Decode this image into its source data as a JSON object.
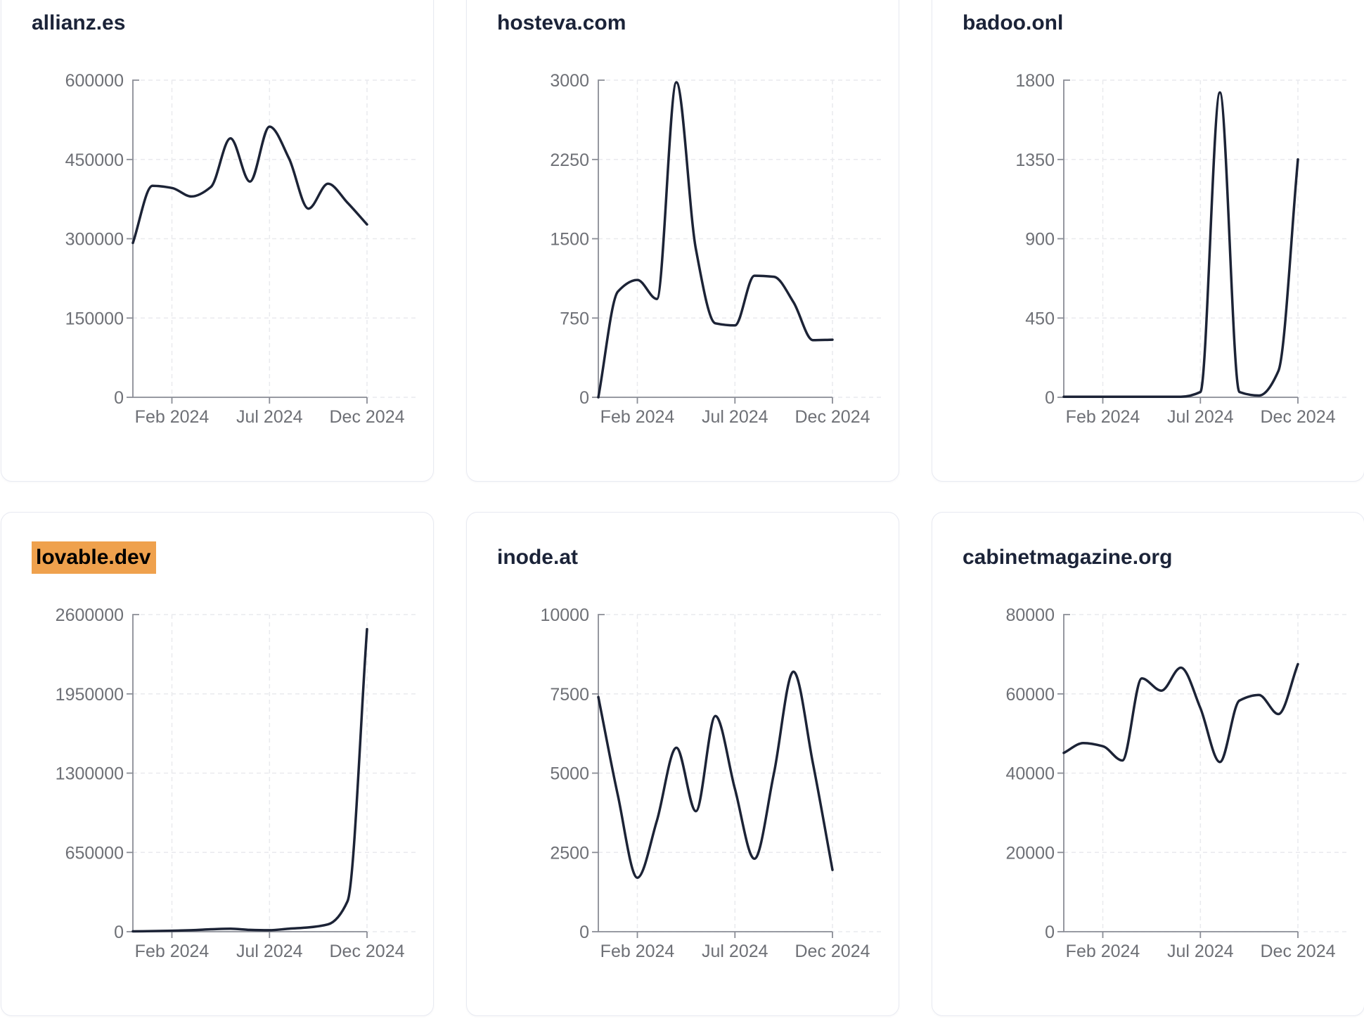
{
  "theme": {
    "background": "#ffffff",
    "card_background": "#ffffff",
    "card_border": "#e8eaf2",
    "title_color": "#1b2338",
    "highlight_background": "#efa14d",
    "highlight_text": "#000000",
    "line_color": "#1c2336",
    "axis_color": "#8a8d96",
    "axis_label_color": "#6e7076",
    "gridline_color": "#e9eaee"
  },
  "chart_data": [
    {
      "type": "line",
      "title": "allianz.es",
      "title_highlighted": false,
      "x": [
        "Dec 2023",
        "Jan 2024",
        "Feb 2024",
        "Mar 2024",
        "Apr 2024",
        "May 2024",
        "Jun 2024",
        "Jul 2024",
        "Aug 2024",
        "Sep 2024",
        "Oct 2024",
        "Nov 2024",
        "Dec 2024"
      ],
      "x_tick_labels": [
        "Feb 2024",
        "Jul 2024",
        "Dec 2024"
      ],
      "values": [
        292000,
        400000,
        396000,
        380000,
        398000,
        490000,
        408000,
        512000,
        452000,
        357000,
        404000,
        368000,
        327000
      ],
      "ylim": [
        0,
        600000
      ],
      "y_ticks": [
        0,
        150000,
        300000,
        450000,
        600000
      ],
      "grid": "dashed",
      "legend": "none"
    },
    {
      "type": "line",
      "title": "hosteva.com",
      "title_highlighted": false,
      "x": [
        "Dec 2023",
        "Jan 2024",
        "Feb 2024",
        "Mar 2024",
        "Apr 2024",
        "May 2024",
        "Jun 2024",
        "Jul 2024",
        "Aug 2024",
        "Sep 2024",
        "Oct 2024",
        "Nov 2024",
        "Dec 2024"
      ],
      "x_tick_labels": [
        "Feb 2024",
        "Jul 2024",
        "Dec 2024"
      ],
      "values": [
        0,
        1000,
        1110,
        930,
        2980,
        1400,
        700,
        680,
        1150,
        1140,
        900,
        540,
        545
      ],
      "ylim": [
        0,
        3000
      ],
      "y_ticks": [
        0,
        750,
        1500,
        2250,
        3000
      ],
      "grid": "dashed",
      "legend": "none"
    },
    {
      "type": "line",
      "title": "badoo.onl",
      "title_highlighted": false,
      "x": [
        "Dec 2023",
        "Jan 2024",
        "Feb 2024",
        "Mar 2024",
        "Apr 2024",
        "May 2024",
        "Jun 2024",
        "Jul 2024",
        "Aug 2024",
        "Sep 2024",
        "Oct 2024",
        "Nov 2024",
        "Dec 2024"
      ],
      "x_tick_labels": [
        "Feb 2024",
        "Jul 2024",
        "Dec 2024"
      ],
      "values": [
        3,
        3,
        3,
        3,
        3,
        3,
        3,
        30,
        1730,
        30,
        10,
        150,
        1350
      ],
      "ylim": [
        0,
        1800
      ],
      "y_ticks": [
        0,
        450,
        900,
        1350,
        1800
      ],
      "grid": "dashed",
      "legend": "none"
    },
    {
      "type": "line",
      "title": "lovable.dev",
      "title_highlighted": true,
      "x": [
        "Dec 2023",
        "Jan 2024",
        "Feb 2024",
        "Mar 2024",
        "Apr 2024",
        "May 2024",
        "Jun 2024",
        "Jul 2024",
        "Aug 2024",
        "Sep 2024",
        "Oct 2024",
        "Nov 2024",
        "Dec 2024"
      ],
      "x_tick_labels": [
        "Feb 2024",
        "Jul 2024",
        "Dec 2024"
      ],
      "values": [
        3000,
        5000,
        8000,
        12000,
        20000,
        25000,
        15000,
        12000,
        25000,
        35000,
        60000,
        250000,
        2480000
      ],
      "ylim": [
        0,
        2600000
      ],
      "y_ticks": [
        0,
        650000,
        1300000,
        1950000,
        2600000
      ],
      "grid": "dashed",
      "legend": "none"
    },
    {
      "type": "line",
      "title": "inode.at",
      "title_highlighted": false,
      "x": [
        "Dec 2023",
        "Jan 2024",
        "Feb 2024",
        "Mar 2024",
        "Apr 2024",
        "May 2024",
        "Jun 2024",
        "Jul 2024",
        "Aug 2024",
        "Sep 2024",
        "Oct 2024",
        "Nov 2024",
        "Dec 2024"
      ],
      "x_tick_labels": [
        "Feb 2024",
        "Jul 2024",
        "Dec 2024"
      ],
      "values": [
        7400,
        4300,
        1700,
        3500,
        5800,
        3800,
        6800,
        4500,
        2300,
        5000,
        8200,
        5300,
        1950
      ],
      "ylim": [
        0,
        10000
      ],
      "y_ticks": [
        0,
        2500,
        5000,
        7500,
        10000
      ],
      "grid": "dashed",
      "legend": "none"
    },
    {
      "type": "line",
      "title": "cabinetmagazine.org",
      "title_highlighted": false,
      "x": [
        "Dec 2023",
        "Jan 2024",
        "Feb 2024",
        "Mar 2024",
        "Apr 2024",
        "May 2024",
        "Jun 2024",
        "Jul 2024",
        "Aug 2024",
        "Sep 2024",
        "Oct 2024",
        "Nov 2024",
        "Dec 2024"
      ],
      "x_tick_labels": [
        "Feb 2024",
        "Jul 2024",
        "Dec 2024"
      ],
      "values": [
        45100,
        47600,
        46800,
        43200,
        63900,
        60800,
        66600,
        56400,
        42800,
        58300,
        59700,
        54900,
        67500
      ],
      "ylim": [
        0,
        80000
      ],
      "y_ticks": [
        0,
        20000,
        40000,
        60000,
        80000
      ],
      "grid": "dashed",
      "legend": "none"
    }
  ]
}
